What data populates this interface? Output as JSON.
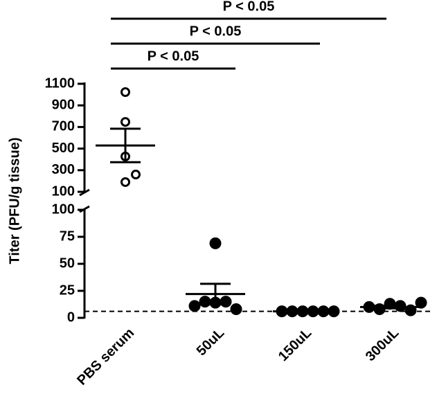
{
  "chart_data": {
    "type": "dotplot",
    "ylabel": "Titer (PFU/g tissue)",
    "categories": [
      "PBS serum",
      "50uL",
      "150uL",
      "300uL"
    ],
    "points": [
      [
        1023,
        747,
        427,
        190,
        260
      ],
      [
        69,
        14,
        15,
        15,
        8,
        11
      ],
      [
        6,
        6,
        6,
        6,
        6,
        6
      ],
      [
        13,
        11,
        8,
        7,
        10,
        14
      ]
    ],
    "mean": [
      529,
      22,
      6,
      10
    ],
    "sem": [
      155,
      9.5,
      0.3,
      1.2
    ],
    "filled": [
      false,
      true,
      true,
      true
    ],
    "color": "#000000",
    "threshold": 6,
    "ylim_upper": [
      100,
      1100
    ],
    "yticks_upper": [
      100,
      300,
      500,
      700,
      900,
      1100
    ],
    "ylim_lower": [
      0,
      100
    ],
    "yticks_lower": [
      0,
      25,
      50,
      75,
      100
    ],
    "comparisons": [
      {
        "from": 0,
        "to": 1,
        "label": "P < 0.05"
      },
      {
        "from": 0,
        "to": 2,
        "label": "P < 0.05"
      },
      {
        "from": 0,
        "to": 3,
        "label": "P < 0.05"
      }
    ]
  }
}
